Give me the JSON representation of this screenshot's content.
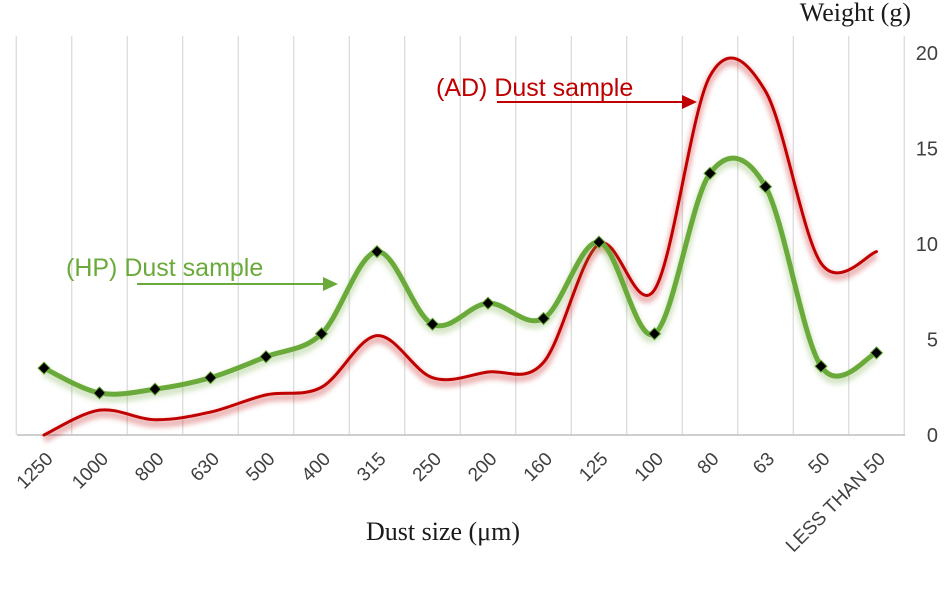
{
  "chart_data": {
    "type": "line",
    "xlabel": "Dust size (μm)",
    "ylabel": "Weight (g)",
    "categories": [
      "1250",
      "1000",
      "800",
      "630",
      "500",
      "400",
      "315",
      "250",
      "200",
      "160",
      "125",
      "100",
      "80",
      "63",
      "50",
      "LESS THAN 50"
    ],
    "ylim": [
      0,
      20
    ],
    "yticks": [
      "0",
      "5",
      "10",
      "15",
      "20"
    ],
    "y_axis_side": "right",
    "grid": "vertical",
    "series": [
      {
        "name": "(AD) Dust sample",
        "color": "#c00000",
        "markers": false,
        "values": [
          0.0,
          1.3,
          0.8,
          1.2,
          2.1,
          2.5,
          5.2,
          3.0,
          3.3,
          3.8,
          10.0,
          7.6,
          18.8,
          18.0,
          9.0,
          9.6
        ]
      },
      {
        "name": "(HP) Dust sample",
        "color": "#6aaa3a",
        "markers": true,
        "values": [
          3.5,
          2.2,
          2.4,
          3.0,
          4.1,
          5.3,
          9.6,
          5.8,
          6.9,
          6.1,
          10.1,
          5.3,
          13.7,
          13.0,
          3.6,
          4.3
        ]
      }
    ],
    "annotations": [
      {
        "text": "(AD) Dust sample",
        "series": "(AD) Dust sample",
        "color": "#c00000"
      },
      {
        "text": "(HP) Dust sample",
        "series": "(HP) Dust sample",
        "color": "#6aaa3a"
      }
    ]
  }
}
